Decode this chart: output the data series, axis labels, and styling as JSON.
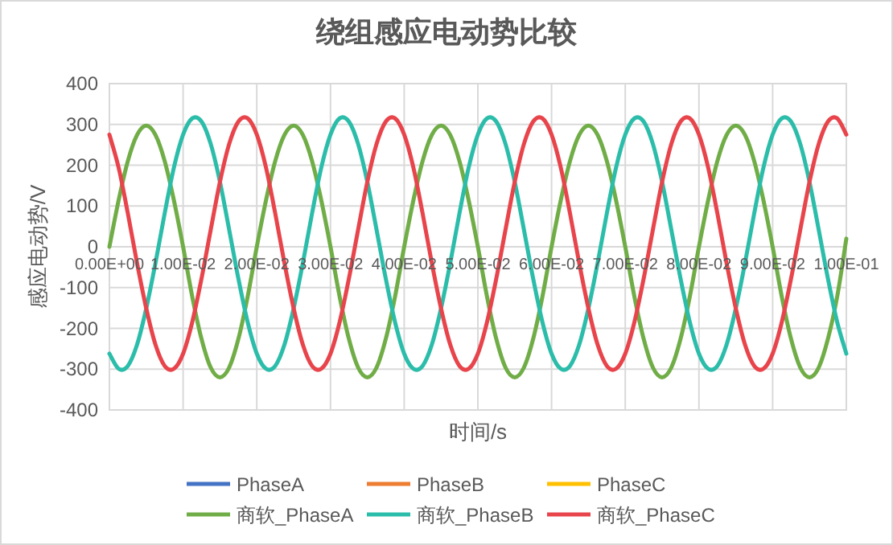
{
  "chart_data": {
    "type": "line",
    "title": "绕组感应电动势比较",
    "xlabel": "时间/s",
    "ylabel": "感应电动势/V",
    "x": [
      0,
      0.00125,
      0.0025,
      0.00375,
      0.005,
      0.00625,
      0.0075,
      0.00875,
      0.01,
      0.01125,
      0.0125,
      0.01375,
      0.015,
      0.01625,
      0.0175,
      0.01875,
      0.02,
      0.02125,
      0.0225,
      0.02375,
      0.025,
      0.02625,
      0.0275,
      0.02875,
      0.03,
      0.03125,
      0.0325,
      0.03375,
      0.035,
      0.03625,
      0.0375,
      0.03875,
      0.04,
      0.04125,
      0.0425,
      0.04375,
      0.045,
      0.04625,
      0.0475,
      0.04875,
      0.05,
      0.05125,
      0.0525,
      0.05375,
      0.055,
      0.05625,
      0.0575,
      0.05875,
      0.06,
      0.06125,
      0.0625,
      0.06375,
      0.065,
      0.06625,
      0.0675,
      0.06875,
      0.07,
      0.07125,
      0.0725,
      0.07375,
      0.075,
      0.07625,
      0.0775,
      0.07875,
      0.08,
      0.08125,
      0.0825,
      0.08375,
      0.085,
      0.08625,
      0.0875,
      0.08875,
      0.09,
      0.09125,
      0.0925,
      0.09375,
      0.095,
      0.09625,
      0.0975,
      0.09875,
      0.1
    ],
    "xlim": [
      0,
      0.1
    ],
    "ylim": [
      -400,
      400
    ],
    "xticks": [
      {
        "value": 0,
        "label": "0.00E+00"
      },
      {
        "value": 0.01,
        "label": "1.00E-02"
      },
      {
        "value": 0.02,
        "label": "2.00E-02"
      },
      {
        "value": 0.03,
        "label": "3.00E-02"
      },
      {
        "value": 0.04,
        "label": "4.00E-02"
      },
      {
        "value": 0.05,
        "label": "5.00E-02"
      },
      {
        "value": 0.06,
        "label": "6.00E-02"
      },
      {
        "value": 0.07,
        "label": "7.00E-02"
      },
      {
        "value": 0.08,
        "label": "8.00E-02"
      },
      {
        "value": 0.09,
        "label": "9.00E-02"
      },
      {
        "value": 0.1,
        "label": "1.00E-01"
      }
    ],
    "yticks": [
      -400,
      -300,
      -200,
      -100,
      0,
      100,
      200,
      300,
      400
    ],
    "grid": true,
    "legend": "bottom",
    "marker": "none",
    "line_style": "solid",
    "series": [
      {
        "name": "PhaseA",
        "color": "#4472c4",
        "values": [
          null,
          null,
          null,
          null,
          null,
          null,
          null,
          null,
          null,
          null,
          null,
          null,
          null,
          null,
          null,
          null,
          null,
          null,
          null,
          null,
          null,
          null,
          null,
          null,
          null,
          null,
          null,
          null,
          null,
          null,
          null,
          null,
          null,
          null,
          null,
          null,
          null,
          null,
          null,
          null,
          null,
          null,
          null,
          null,
          null,
          null,
          null,
          null,
          null,
          null,
          null,
          null,
          null,
          null,
          null,
          null,
          null,
          null,
          null,
          null,
          null,
          null,
          null,
          null,
          null,
          null,
          null,
          null,
          null,
          null,
          null,
          null,
          null,
          null,
          null,
          null,
          null,
          null,
          null,
          null,
          null
        ]
      },
      {
        "name": "PhaseB",
        "color": "#ed7d31",
        "values": [
          null,
          null,
          null,
          null,
          null,
          null,
          null,
          null,
          null,
          null,
          null,
          null,
          null,
          null,
          null,
          null,
          null,
          null,
          null,
          null,
          null,
          null,
          null,
          null,
          null,
          null,
          null,
          null,
          null,
          null,
          null,
          null,
          null,
          null,
          null,
          null,
          null,
          null,
          null,
          null,
          null,
          null,
          null,
          null,
          null,
          null,
          null,
          null,
          null,
          null,
          null,
          null,
          null,
          null,
          null,
          null,
          null,
          null,
          null,
          null,
          null,
          null,
          null,
          null,
          null,
          null,
          null,
          null,
          null,
          null,
          null,
          null,
          null,
          null,
          null,
          null,
          null,
          null,
          null,
          null,
          null
        ]
      },
      {
        "name": "PhaseC",
        "color": "#ffc000",
        "values": [
          null,
          null,
          null,
          null,
          null,
          null,
          null,
          null,
          null,
          null,
          null,
          null,
          null,
          null,
          null,
          null,
          null,
          null,
          null,
          null,
          null,
          null,
          null,
          null,
          null,
          null,
          null,
          null,
          null,
          null,
          null,
          null,
          null,
          null,
          null,
          null,
          null,
          null,
          null,
          null,
          null,
          null,
          null,
          null,
          null,
          null,
          null,
          null,
          null,
          null,
          null,
          null,
          null,
          null,
          null,
          null,
          null,
          null,
          null,
          null,
          null,
          null,
          null,
          null,
          null,
          null,
          null,
          null,
          null,
          null,
          null,
          null,
          null,
          null,
          null,
          null,
          null,
          null,
          null,
          null,
          null
        ]
      },
      {
        "name": "商软_PhaseA",
        "color": "#70ad47",
        "values": [
          0,
          114,
          210,
          274,
          297,
          274,
          210,
          114,
          0,
          -123,
          -226,
          -296,
          -320,
          -296,
          -226,
          -123,
          0,
          114,
          210,
          274,
          297,
          274,
          210,
          114,
          0,
          -123,
          -226,
          -296,
          -320,
          -296,
          -226,
          -123,
          0,
          114,
          210,
          274,
          297,
          274,
          210,
          114,
          0,
          -123,
          -226,
          -296,
          -320,
          -296,
          -226,
          -123,
          0,
          114,
          210,
          274,
          297,
          274,
          210,
          114,
          0,
          -123,
          -226,
          -296,
          -320,
          -296,
          -226,
          -123,
          0,
          114,
          210,
          274,
          297,
          274,
          210,
          114,
          0,
          -123,
          -226,
          -296,
          -320,
          -296,
          -226,
          -123,
          20
        ]
      },
      {
        "name": "商软_PhaseB",
        "color": "#2bbdaa",
        "values": [
          -262,
          -299,
          -292,
          -240,
          -151,
          -40,
          82,
          194,
          275,
          315,
          307,
          252,
          159,
          42,
          -78,
          -184,
          -262,
          -299,
          -292,
          -240,
          -151,
          -40,
          82,
          194,
          275,
          315,
          307,
          252,
          159,
          42,
          -78,
          -184,
          -262,
          -299,
          -292,
          -240,
          -151,
          -40,
          82,
          194,
          275,
          315,
          307,
          252,
          159,
          42,
          -78,
          -184,
          -262,
          -299,
          -292,
          -240,
          -151,
          -40,
          82,
          194,
          275,
          315,
          307,
          252,
          159,
          42,
          -78,
          -184,
          -262,
          -299,
          -292,
          -240,
          -151,
          -40,
          82,
          194,
          275,
          315,
          307,
          252,
          159,
          42,
          -78,
          -184,
          -262
        ]
      },
      {
        "name": "商软_PhaseC",
        "color": "#e8444b",
        "values": [
          275,
          194,
          82,
          -40,
          -151,
          -240,
          -292,
          -299,
          -262,
          -184,
          -78,
          42,
          159,
          252,
          307,
          315,
          275,
          194,
          82,
          -40,
          -151,
          -240,
          -292,
          -299,
          -262,
          -184,
          -78,
          42,
          159,
          252,
          307,
          315,
          275,
          194,
          82,
          -40,
          -151,
          -240,
          -292,
          -299,
          -262,
          -184,
          -78,
          42,
          159,
          252,
          307,
          315,
          275,
          194,
          82,
          -40,
          -151,
          -240,
          -292,
          -299,
          -262,
          -184,
          -78,
          42,
          159,
          252,
          307,
          315,
          275,
          194,
          82,
          -40,
          -151,
          -240,
          -292,
          -299,
          -262,
          -184,
          -78,
          42,
          159,
          252,
          307,
          315,
          275
        ]
      }
    ]
  }
}
